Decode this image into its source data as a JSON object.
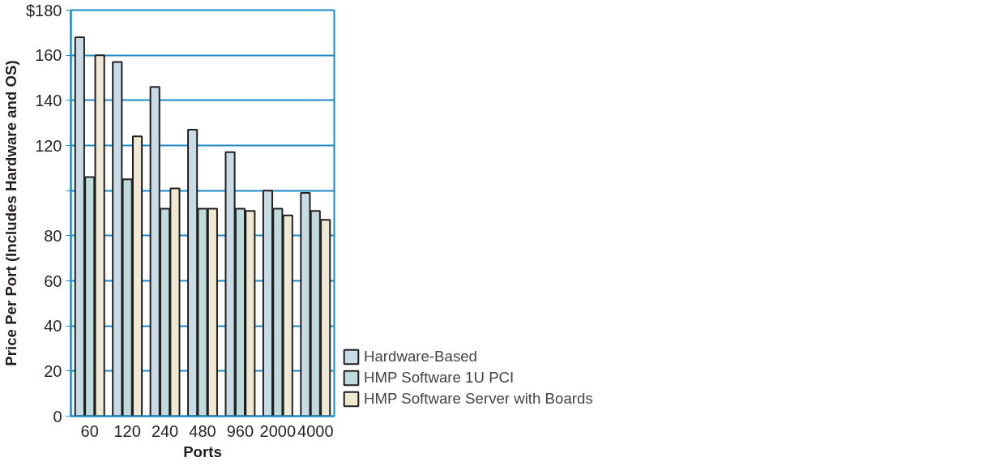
{
  "chart_data": {
    "type": "bar",
    "xlabel": "Ports",
    "ylabel": "Price Per Port (Includes Hardware and OS)",
    "categories": [
      "60",
      "120",
      "240",
      "480",
      "960",
      "2000",
      "4000"
    ],
    "series": [
      {
        "name": "Hardware-Based",
        "color": "#c9dce6",
        "values": [
          168,
          157,
          146,
          127,
          117,
          100,
          99
        ]
      },
      {
        "name": "HMP Software 1U PCI",
        "color": "#c0dbdb",
        "values": [
          106,
          105,
          92,
          92,
          92,
          92,
          91
        ]
      },
      {
        "name": "HMP Software Server with Boards",
        "color": "#efe8d2",
        "values": [
          160,
          124,
          101,
          92,
          91,
          89,
          87
        ]
      }
    ],
    "ylim": [
      0,
      180
    ],
    "yticks": [
      0,
      20,
      40,
      60,
      80,
      {
        "value": 100,
        "label": null
      },
      120,
      140,
      160,
      {
        "value": 180,
        "label": "$180"
      }
    ],
    "grid": "y",
    "legend": "bottom right"
  }
}
